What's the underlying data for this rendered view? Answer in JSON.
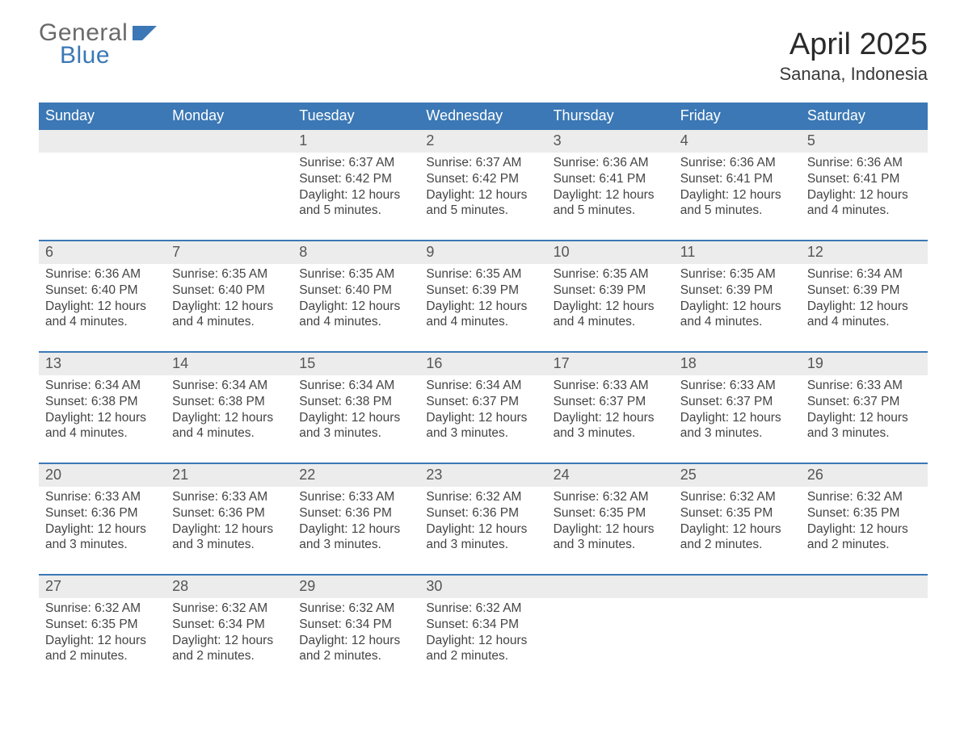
{
  "brand": {
    "word1": "General",
    "word2": "Blue"
  },
  "title": "April 2025",
  "subtitle": "Sanana, Indonesia",
  "colors": {
    "header_blue": "#3b78b5",
    "grey_band": "#ececec",
    "rule": "#3b78b5",
    "text": "#333333",
    "background": "#ffffff"
  },
  "dow": [
    "Sunday",
    "Monday",
    "Tuesday",
    "Wednesday",
    "Thursday",
    "Friday",
    "Saturday"
  ],
  "weeks": [
    {
      "nums": [
        "",
        "",
        "1",
        "2",
        "3",
        "4",
        "5"
      ],
      "cells": [
        [],
        [],
        [
          "Sunrise: 6:37 AM",
          "Sunset: 6:42 PM",
          "Daylight: 12 hours",
          "and 5 minutes."
        ],
        [
          "Sunrise: 6:37 AM",
          "Sunset: 6:42 PM",
          "Daylight: 12 hours",
          "and 5 minutes."
        ],
        [
          "Sunrise: 6:36 AM",
          "Sunset: 6:41 PM",
          "Daylight: 12 hours",
          "and 5 minutes."
        ],
        [
          "Sunrise: 6:36 AM",
          "Sunset: 6:41 PM",
          "Daylight: 12 hours",
          "and 5 minutes."
        ],
        [
          "Sunrise: 6:36 AM",
          "Sunset: 6:41 PM",
          "Daylight: 12 hours",
          "and 4 minutes."
        ]
      ]
    },
    {
      "nums": [
        "6",
        "7",
        "8",
        "9",
        "10",
        "11",
        "12"
      ],
      "cells": [
        [
          "Sunrise: 6:36 AM",
          "Sunset: 6:40 PM",
          "Daylight: 12 hours",
          "and 4 minutes."
        ],
        [
          "Sunrise: 6:35 AM",
          "Sunset: 6:40 PM",
          "Daylight: 12 hours",
          "and 4 minutes."
        ],
        [
          "Sunrise: 6:35 AM",
          "Sunset: 6:40 PM",
          "Daylight: 12 hours",
          "and 4 minutes."
        ],
        [
          "Sunrise: 6:35 AM",
          "Sunset: 6:39 PM",
          "Daylight: 12 hours",
          "and 4 minutes."
        ],
        [
          "Sunrise: 6:35 AM",
          "Sunset: 6:39 PM",
          "Daylight: 12 hours",
          "and 4 minutes."
        ],
        [
          "Sunrise: 6:35 AM",
          "Sunset: 6:39 PM",
          "Daylight: 12 hours",
          "and 4 minutes."
        ],
        [
          "Sunrise: 6:34 AM",
          "Sunset: 6:39 PM",
          "Daylight: 12 hours",
          "and 4 minutes."
        ]
      ]
    },
    {
      "nums": [
        "13",
        "14",
        "15",
        "16",
        "17",
        "18",
        "19"
      ],
      "cells": [
        [
          "Sunrise: 6:34 AM",
          "Sunset: 6:38 PM",
          "Daylight: 12 hours",
          "and 4 minutes."
        ],
        [
          "Sunrise: 6:34 AM",
          "Sunset: 6:38 PM",
          "Daylight: 12 hours",
          "and 4 minutes."
        ],
        [
          "Sunrise: 6:34 AM",
          "Sunset: 6:38 PM",
          "Daylight: 12 hours",
          "and 3 minutes."
        ],
        [
          "Sunrise: 6:34 AM",
          "Sunset: 6:37 PM",
          "Daylight: 12 hours",
          "and 3 minutes."
        ],
        [
          "Sunrise: 6:33 AM",
          "Sunset: 6:37 PM",
          "Daylight: 12 hours",
          "and 3 minutes."
        ],
        [
          "Sunrise: 6:33 AM",
          "Sunset: 6:37 PM",
          "Daylight: 12 hours",
          "and 3 minutes."
        ],
        [
          "Sunrise: 6:33 AM",
          "Sunset: 6:37 PM",
          "Daylight: 12 hours",
          "and 3 minutes."
        ]
      ]
    },
    {
      "nums": [
        "20",
        "21",
        "22",
        "23",
        "24",
        "25",
        "26"
      ],
      "cells": [
        [
          "Sunrise: 6:33 AM",
          "Sunset: 6:36 PM",
          "Daylight: 12 hours",
          "and 3 minutes."
        ],
        [
          "Sunrise: 6:33 AM",
          "Sunset: 6:36 PM",
          "Daylight: 12 hours",
          "and 3 minutes."
        ],
        [
          "Sunrise: 6:33 AM",
          "Sunset: 6:36 PM",
          "Daylight: 12 hours",
          "and 3 minutes."
        ],
        [
          "Sunrise: 6:32 AM",
          "Sunset: 6:36 PM",
          "Daylight: 12 hours",
          "and 3 minutes."
        ],
        [
          "Sunrise: 6:32 AM",
          "Sunset: 6:35 PM",
          "Daylight: 12 hours",
          "and 3 minutes."
        ],
        [
          "Sunrise: 6:32 AM",
          "Sunset: 6:35 PM",
          "Daylight: 12 hours",
          "and 2 minutes."
        ],
        [
          "Sunrise: 6:32 AM",
          "Sunset: 6:35 PM",
          "Daylight: 12 hours",
          "and 2 minutes."
        ]
      ]
    },
    {
      "nums": [
        "27",
        "28",
        "29",
        "30",
        "",
        "",
        ""
      ],
      "cells": [
        [
          "Sunrise: 6:32 AM",
          "Sunset: 6:35 PM",
          "Daylight: 12 hours",
          "and 2 minutes."
        ],
        [
          "Sunrise: 6:32 AM",
          "Sunset: 6:34 PM",
          "Daylight: 12 hours",
          "and 2 minutes."
        ],
        [
          "Sunrise: 6:32 AM",
          "Sunset: 6:34 PM",
          "Daylight: 12 hours",
          "and 2 minutes."
        ],
        [
          "Sunrise: 6:32 AM",
          "Sunset: 6:34 PM",
          "Daylight: 12 hours",
          "and 2 minutes."
        ],
        [],
        [],
        []
      ]
    }
  ]
}
